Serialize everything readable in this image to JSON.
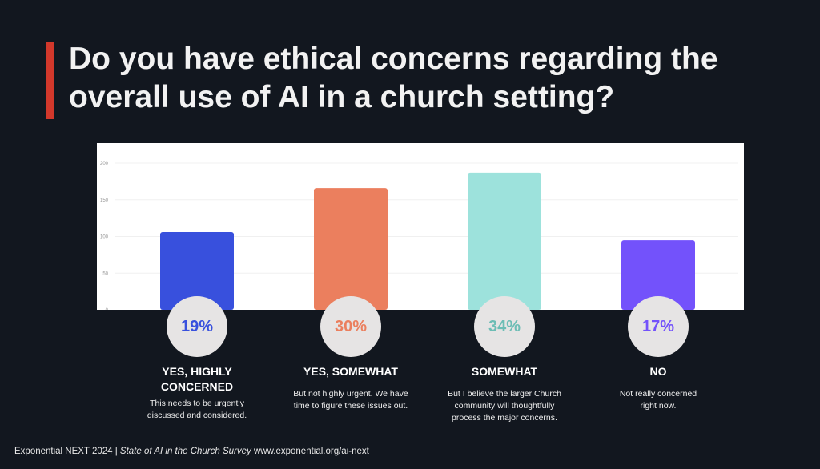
{
  "title": "Do you have ethical concerns regarding the overall use of AI in a church setting?",
  "accent_color": "#d2382b",
  "chart_data": {
    "type": "bar",
    "categories": [
      "YES, HIGHLY CONCERNED",
      "YES, SOMEWHAT",
      "SOMEWHAT",
      "NO"
    ],
    "values": [
      106,
      166,
      187,
      95
    ],
    "percent_labels": [
      "19%",
      "30%",
      "34%",
      "17%"
    ],
    "descriptions": [
      "This needs to be urgently discussed and considered.",
      "But not highly urgent. We have time to figure these issues out.",
      "But I believe the larger Church community will thoughtfully process the major concerns.",
      "Not really concerned right now."
    ],
    "colors": [
      "#3850dd",
      "#eb7f5e",
      "#9de2dc",
      "#7352fb"
    ],
    "percent_colors": [
      "#3850dd",
      "#eb7f5e",
      "#6dbdb5",
      "#7352fb"
    ],
    "yticks": [
      "0",
      "50",
      "100",
      "150",
      "200"
    ],
    "ylim": [
      0,
      200
    ],
    "grid": true
  },
  "footer": {
    "prefix": "Exponential NEXT 2024 |",
    "survey": "State of AI in the Church Survey",
    "url": "www.exponential.org/ai-next"
  }
}
